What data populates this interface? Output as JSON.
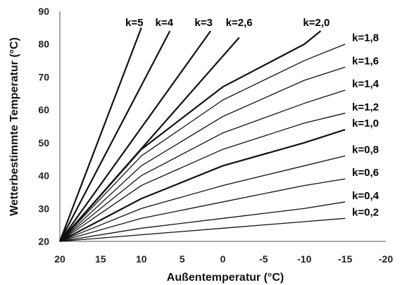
{
  "chart_data": {
    "type": "line",
    "title": "",
    "xlabel": "Außentemperatur (°C)",
    "ylabel": "Wetterbestimmte Temperatur (°C)",
    "xlim": [
      20,
      -20
    ],
    "ylim": [
      20,
      90
    ],
    "x_ticks": [
      "20",
      "15",
      "10",
      "5",
      "0",
      "-5",
      "-10",
      "-15",
      "-20"
    ],
    "y_ticks": [
      "20",
      "30",
      "40",
      "50",
      "60",
      "70",
      "80",
      "90"
    ],
    "grid": false,
    "series": [
      {
        "name": "k=5",
        "x": [
          20,
          10
        ],
        "y": [
          20,
          85
        ]
      },
      {
        "name": "k=4",
        "x": [
          20,
          6.5
        ],
        "y": [
          20,
          84
        ]
      },
      {
        "name": "k=3",
        "x": [
          20,
          1.5
        ],
        "y": [
          20,
          84
        ]
      },
      {
        "name": "k=2,6",
        "x": [
          20,
          -2
        ],
        "y": [
          20,
          82
        ]
      },
      {
        "name": "k=2,0",
        "x": [
          20,
          10,
          0,
          -10,
          -12
        ],
        "y": [
          20,
          48,
          67,
          80,
          84
        ]
      },
      {
        "name": "k=1,8",
        "x": [
          20,
          10,
          0,
          -10,
          -15
        ],
        "y": [
          20,
          46,
          63,
          75,
          80
        ]
      },
      {
        "name": "k=1,6",
        "x": [
          20,
          10,
          0,
          -10,
          -15
        ],
        "y": [
          20,
          43,
          58,
          69,
          73
        ]
      },
      {
        "name": "k=1,4",
        "x": [
          20,
          10,
          0,
          -10,
          -15
        ],
        "y": [
          20,
          40,
          53,
          62,
          66
        ]
      },
      {
        "name": "k=1,2",
        "x": [
          20,
          10,
          0,
          -10,
          -15
        ],
        "y": [
          20,
          37,
          48,
          56,
          59
        ]
      },
      {
        "name": "k=1,0",
        "x": [
          20,
          10,
          0,
          -10,
          -15
        ],
        "y": [
          20,
          33,
          43,
          50,
          54
        ]
      },
      {
        "name": "k=0,8",
        "x": [
          20,
          10,
          0,
          -10,
          -15
        ],
        "y": [
          20,
          30,
          37,
          43,
          46
        ]
      },
      {
        "name": "k=0,6",
        "x": [
          20,
          10,
          0,
          -10,
          -15
        ],
        "y": [
          20,
          27,
          32,
          37,
          39
        ]
      },
      {
        "name": "k=0,4",
        "x": [
          20,
          10,
          0,
          -10,
          -15
        ],
        "y": [
          20,
          24,
          27,
          30,
          32
        ]
      },
      {
        "name": "k=0,2",
        "x": [
          20,
          10,
          0,
          -10,
          -15
        ],
        "y": [
          20,
          22,
          24,
          26,
          27
        ]
      }
    ]
  }
}
